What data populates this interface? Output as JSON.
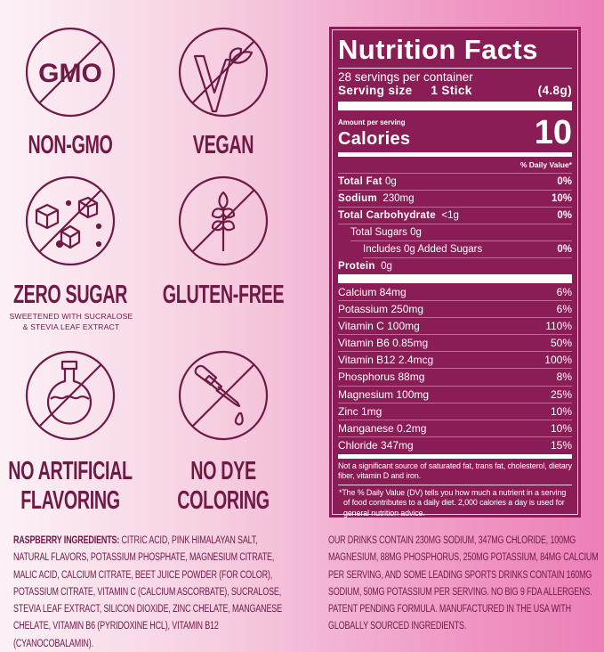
{
  "colors": {
    "panel": "#8a1d55",
    "text": "#6e1a45",
    "bg_left": "#fcf1f6",
    "bg_right": "#ed7fb6"
  },
  "badges": [
    {
      "icon": "no-gmo-icon",
      "icon_text": "GMO",
      "label": "NON-GMO"
    },
    {
      "icon": "vegan-leaf-icon",
      "label": "VEGAN"
    },
    {
      "icon": "no-sugar-cubes-icon",
      "label": "ZERO SUGAR",
      "sub1": "SWEETENED WITH SUCRALOSE",
      "sub2": "& STEVIA LEAF EXTRACT"
    },
    {
      "icon": "no-gluten-wheat-icon",
      "label": "GLUTEN-FREE"
    },
    {
      "icon": "no-artificial-flask-icon",
      "label1": "NO ARTIFICIAL",
      "label2": "FLAVORING"
    },
    {
      "icon": "no-dye-dropper-icon",
      "label1": "NO DYE",
      "label2": "COLORING"
    }
  ],
  "nutrition": {
    "title": "Nutrition Facts",
    "servings": "28 servings per container",
    "serving_size_label": "Serving size",
    "serving_size_value": "1 Stick",
    "serving_size_grams": "(4.8g)",
    "amount_per_serving": "Amount per serving",
    "calories_label": "Calories",
    "calories_value": "10",
    "dv_header": "% Daily Value*",
    "macros": [
      {
        "name": "Total Fat",
        "amount": "0g",
        "dv": "0%"
      },
      {
        "name": "Sodium",
        "amount": "230mg",
        "dv": "10%"
      },
      {
        "name": "Total Carbohydrate",
        "amount": "<1g",
        "dv": "0%"
      },
      {
        "name": "Total Sugars 0g",
        "amount": "",
        "dv": ""
      },
      {
        "name": "Includes 0g Added Sugars",
        "amount": "",
        "dv": "0%"
      },
      {
        "name": "Protein",
        "amount": "0g",
        "dv": ""
      }
    ],
    "micros": [
      {
        "name": "Calcium 84mg",
        "dv": "6%"
      },
      {
        "name": "Potassium 250mg",
        "dv": "6%"
      },
      {
        "name": "Vitamin C 100mg",
        "dv": "110%"
      },
      {
        "name": "Vitamin B6 0.85mg",
        "dv": "50%"
      },
      {
        "name": "Vitamin B12 2.4mcg",
        "dv": "100%"
      },
      {
        "name": "Phosphorus 88mg",
        "dv": "8%"
      },
      {
        "name": "Magnesium 100mg",
        "dv": "25%"
      },
      {
        "name": "Zinc 1mg",
        "dv": "10%"
      },
      {
        "name": "Manganese 0.2mg",
        "dv": "10%"
      },
      {
        "name": "Chloride 347mg",
        "dv": "15%"
      }
    ],
    "footnote1": "Not a significant source of saturated fat, trans fat, cholesterol, dietary fiber, vitamin D and iron.",
    "footnote2": "*The % Daily Value (DV) tells you how much a nutrient in a serving of food contributes to a daily diet. 2,000 calories a day is used for general nutrition advice."
  },
  "ingredients": {
    "label": "RASPBERRY INGREDIENTS:",
    "text": " CITRIC ACID, PINK HIMALAYAN SALT, NATURAL FLAVORS, POTASSIUM PHOSPHATE, MAGNESIUM CITRATE, MALIC ACID, CALCIUM CITRATE, BEET JUICE POWDER (FOR COLOR), POTASSIUM CITRATE, VITAMIN C (CALCIUM ASCORBATE), SUCRALOSE, STEVIA LEAF EXTRACT, SILICON DIOXIDE, ZINC CHELATE, MANGANESE CHELATE, VITAMIN B6 (PYRIDOXINE HCL), VITAMIN B12 (CYANOCOBALAMIN)."
  },
  "claims": "OUR DRINKS CONTAIN 230MG SODIUM, 347MG CHLORIDE,  100MG MAGNESIUM, 88MG PHOSPHORUS, 250MG POTASSIUM, 84MG CALCIUM PER SERVING, AND SOME LEADING SPORTS DRINKS CONTAIN 160MG SODIUM, 50MG POTASSIUM PER SERVING. NO BIG 9 FDA ALLERGENS. PATENT PENDING FORMULA. MANUFACTURED IN THE USA WITH GLOBALLY SOURCED INGREDIENTS."
}
